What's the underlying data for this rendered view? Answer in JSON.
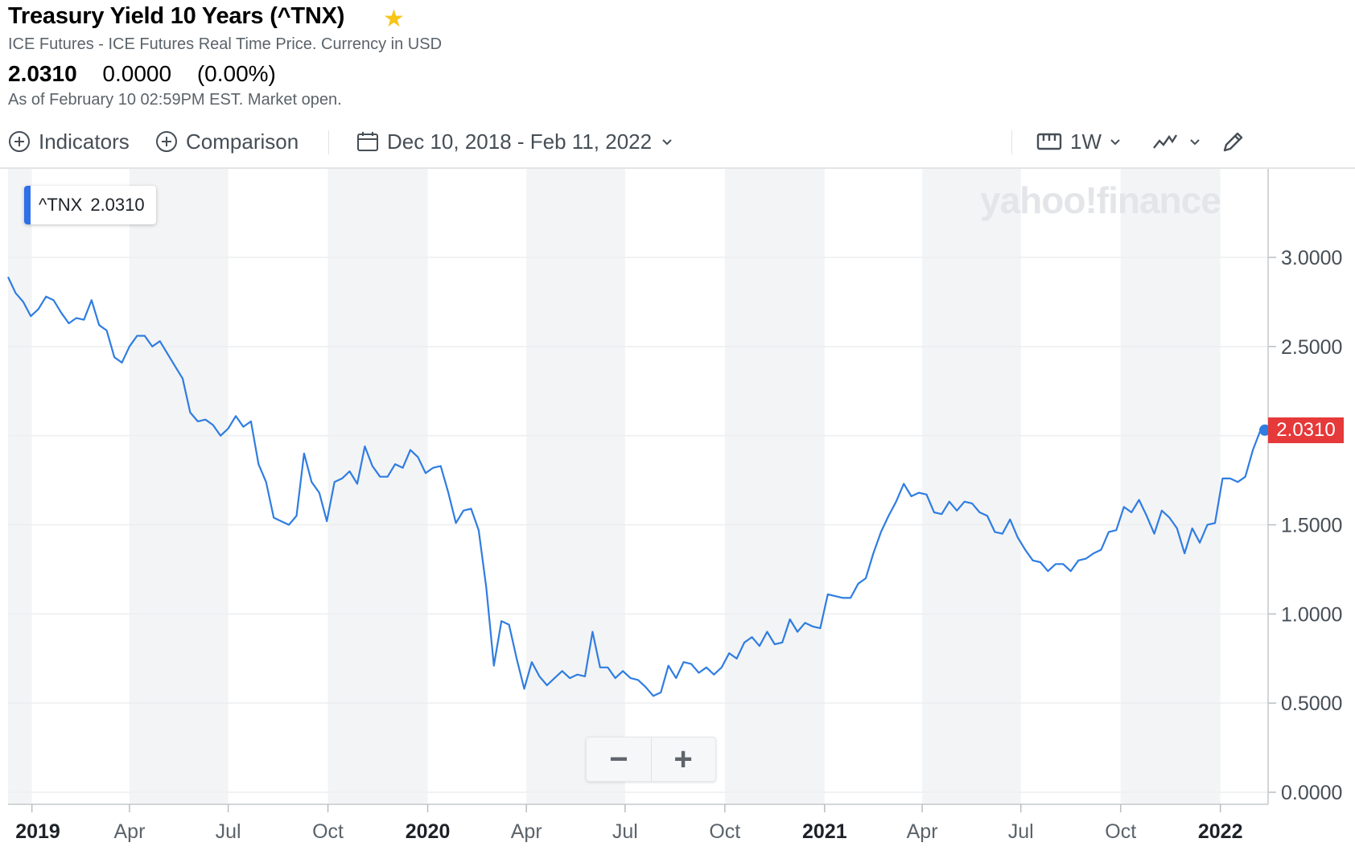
{
  "header": {
    "title": "Treasury Yield 10 Years (^TNX)",
    "subtitle": "ICE Futures - ICE Futures Real Time Price. Currency in USD",
    "price": "2.0310",
    "change": "0.0000",
    "change_pct": "(0.00%)",
    "as_of": "As of February 10 02:59PM EST. Market open.",
    "star_icon": "star-icon"
  },
  "toolbar": {
    "indicators": "Indicators",
    "comparison": "Comparison",
    "date_range": "Dec 10, 2018 - Feb 11, 2022",
    "interval": "1W"
  },
  "badge": {
    "symbol": "^TNX",
    "value": "2.0310"
  },
  "watermark": "yahoo!finance",
  "zoom": {
    "minus": "−",
    "plus": "+"
  },
  "last_price_label": "2.0310",
  "colors": {
    "line": "#2f7de1",
    "last_price": "#e5393a",
    "band": "#f3f4f5",
    "star": "#f5c518"
  },
  "chart_data": {
    "type": "line",
    "series": [
      {
        "name": "^TNX",
        "x": [
          "2018-12-10",
          "2018-12-17",
          "2018-12-24",
          "2018-12-31",
          "2019-01-07",
          "2019-01-14",
          "2019-01-21",
          "2019-01-28",
          "2019-02-04",
          "2019-02-11",
          "2019-02-18",
          "2019-02-25",
          "2019-03-04",
          "2019-03-11",
          "2019-03-18",
          "2019-03-25",
          "2019-04-01",
          "2019-04-08",
          "2019-04-15",
          "2019-04-22",
          "2019-04-29",
          "2019-05-06",
          "2019-05-13",
          "2019-05-20",
          "2019-05-27",
          "2019-06-03",
          "2019-06-10",
          "2019-06-17",
          "2019-06-24",
          "2019-07-01",
          "2019-07-08",
          "2019-07-15",
          "2019-07-22",
          "2019-07-29",
          "2019-08-05",
          "2019-08-12",
          "2019-08-19",
          "2019-08-26",
          "2019-09-02",
          "2019-09-09",
          "2019-09-16",
          "2019-09-23",
          "2019-09-30",
          "2019-10-07",
          "2019-10-14",
          "2019-10-21",
          "2019-10-28",
          "2019-11-04",
          "2019-11-11",
          "2019-11-18",
          "2019-11-25",
          "2019-12-02",
          "2019-12-09",
          "2019-12-16",
          "2019-12-23",
          "2019-12-30",
          "2020-01-06",
          "2020-01-13",
          "2020-01-20",
          "2020-01-27",
          "2020-02-03",
          "2020-02-10",
          "2020-02-17",
          "2020-02-24",
          "2020-03-02",
          "2020-03-09",
          "2020-03-16",
          "2020-03-23",
          "2020-03-30",
          "2020-04-06",
          "2020-04-13",
          "2020-04-20",
          "2020-04-27",
          "2020-05-04",
          "2020-05-11",
          "2020-05-18",
          "2020-05-25",
          "2020-06-01",
          "2020-06-08",
          "2020-06-15",
          "2020-06-22",
          "2020-06-29",
          "2020-07-06",
          "2020-07-13",
          "2020-07-20",
          "2020-07-27",
          "2020-08-03",
          "2020-08-10",
          "2020-08-17",
          "2020-08-24",
          "2020-08-31",
          "2020-09-07",
          "2020-09-14",
          "2020-09-21",
          "2020-09-28",
          "2020-10-05",
          "2020-10-12",
          "2020-10-19",
          "2020-10-26",
          "2020-11-02",
          "2020-11-09",
          "2020-11-16",
          "2020-11-23",
          "2020-11-30",
          "2020-12-07",
          "2020-12-14",
          "2020-12-21",
          "2020-12-28",
          "2021-01-04",
          "2021-01-11",
          "2021-01-18",
          "2021-01-25",
          "2021-02-01",
          "2021-02-08",
          "2021-02-15",
          "2021-02-22",
          "2021-03-01",
          "2021-03-08",
          "2021-03-15",
          "2021-03-22",
          "2021-03-29",
          "2021-04-05",
          "2021-04-12",
          "2021-04-19",
          "2021-04-26",
          "2021-05-03",
          "2021-05-10",
          "2021-05-17",
          "2021-05-24",
          "2021-05-31",
          "2021-06-07",
          "2021-06-14",
          "2021-06-21",
          "2021-06-28",
          "2021-07-05",
          "2021-07-12",
          "2021-07-19",
          "2021-07-26",
          "2021-08-02",
          "2021-08-09",
          "2021-08-16",
          "2021-08-23",
          "2021-08-30",
          "2021-09-06",
          "2021-09-13",
          "2021-09-20",
          "2021-09-27",
          "2021-10-04",
          "2021-10-11",
          "2021-10-18",
          "2021-10-25",
          "2021-11-01",
          "2021-11-08",
          "2021-11-15",
          "2021-11-22",
          "2021-11-29",
          "2021-12-06",
          "2021-12-13",
          "2021-12-20",
          "2021-12-27",
          "2022-01-03",
          "2022-01-10",
          "2022-01-17",
          "2022-01-24",
          "2022-01-31",
          "2022-02-07"
        ],
        "values": [
          2.89,
          2.8,
          2.75,
          2.67,
          2.71,
          2.78,
          2.76,
          2.69,
          2.63,
          2.66,
          2.65,
          2.76,
          2.62,
          2.59,
          2.44,
          2.41,
          2.5,
          2.56,
          2.56,
          2.5,
          2.53,
          2.46,
          2.39,
          2.32,
          2.13,
          2.08,
          2.09,
          2.06,
          2.0,
          2.04,
          2.11,
          2.05,
          2.08,
          1.84,
          1.74,
          1.54,
          1.52,
          1.5,
          1.55,
          1.9,
          1.74,
          1.68,
          1.52,
          1.74,
          1.76,
          1.8,
          1.73,
          1.94,
          1.83,
          1.77,
          1.77,
          1.84,
          1.82,
          1.92,
          1.88,
          1.79,
          1.82,
          1.83,
          1.68,
          1.51,
          1.58,
          1.59,
          1.47,
          1.15,
          0.71,
          0.96,
          0.94,
          0.75,
          0.58,
          0.73,
          0.65,
          0.6,
          0.64,
          0.68,
          0.64,
          0.66,
          0.65,
          0.9,
          0.7,
          0.7,
          0.64,
          0.68,
          0.64,
          0.63,
          0.59,
          0.54,
          0.56,
          0.71,
          0.64,
          0.73,
          0.72,
          0.67,
          0.7,
          0.66,
          0.7,
          0.78,
          0.75,
          0.84,
          0.87,
          0.82,
          0.9,
          0.83,
          0.84,
          0.97,
          0.9,
          0.95,
          0.93,
          0.92,
          1.11,
          1.1,
          1.09,
          1.09,
          1.17,
          1.2,
          1.34,
          1.46,
          1.55,
          1.63,
          1.73,
          1.66,
          1.68,
          1.67,
          1.57,
          1.56,
          1.63,
          1.58,
          1.63,
          1.62,
          1.57,
          1.55,
          1.46,
          1.45,
          1.53,
          1.43,
          1.36,
          1.3,
          1.29,
          1.24,
          1.28,
          1.28,
          1.24,
          1.3,
          1.31,
          1.34,
          1.36,
          1.46,
          1.47,
          1.6,
          1.57,
          1.64,
          1.55,
          1.45,
          1.58,
          1.54,
          1.48,
          1.34,
          1.48,
          1.4,
          1.5,
          1.51,
          1.76,
          1.76,
          1.74,
          1.77,
          1.92,
          2.031
        ]
      }
    ],
    "ylim": [
      0,
      3.25
    ],
    "yticks": [
      "0.0000",
      "0.5000",
      "1.0000",
      "1.5000",
      "2.0000",
      "2.5000",
      "3.0000"
    ],
    "yticks_visible": [
      "0.0000",
      "0.5000",
      "1.0000",
      "1.5000",
      "2.5000",
      "3.0000"
    ],
    "xlim": [
      "2018-12-10",
      "2022-02-14"
    ],
    "xticks": [
      {
        "date": "2019-01-01",
        "label": "2019",
        "year": true
      },
      {
        "date": "2019-04-01",
        "label": "Apr",
        "year": false
      },
      {
        "date": "2019-07-01",
        "label": "Jul",
        "year": false
      },
      {
        "date": "2019-10-01",
        "label": "Oct",
        "year": false
      },
      {
        "date": "2020-01-01",
        "label": "2020",
        "year": true
      },
      {
        "date": "2020-04-01",
        "label": "Apr",
        "year": false
      },
      {
        "date": "2020-07-01",
        "label": "Jul",
        "year": false
      },
      {
        "date": "2020-10-01",
        "label": "Oct",
        "year": false
      },
      {
        "date": "2021-01-01",
        "label": "2021",
        "year": true
      },
      {
        "date": "2021-04-01",
        "label": "Apr",
        "year": false
      },
      {
        "date": "2021-07-01",
        "label": "Jul",
        "year": false
      },
      {
        "date": "2021-10-01",
        "label": "Oct",
        "year": false
      },
      {
        "date": "2022-01-01",
        "label": "2022",
        "year": true
      }
    ],
    "grid": true,
    "last_value": 2.031
  }
}
